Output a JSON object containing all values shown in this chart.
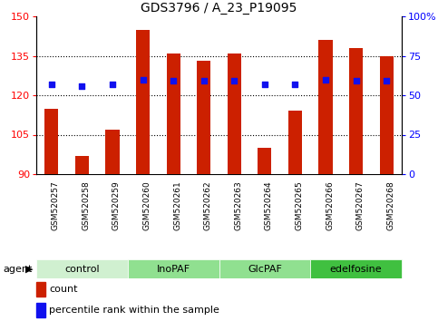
{
  "title": "GDS3796 / A_23_P19095",
  "samples": [
    "GSM520257",
    "GSM520258",
    "GSM520259",
    "GSM520260",
    "GSM520261",
    "GSM520262",
    "GSM520263",
    "GSM520264",
    "GSM520265",
    "GSM520266",
    "GSM520267",
    "GSM520268"
  ],
  "counts": [
    115,
    97,
    107,
    145,
    136,
    133,
    136,
    100,
    114,
    141,
    138,
    135
  ],
  "percentiles": [
    57,
    56,
    57,
    60,
    59,
    59,
    59,
    57,
    57,
    60,
    59,
    59
  ],
  "ylim_left": [
    90,
    150
  ],
  "ylim_right": [
    0,
    100
  ],
  "yticks_left": [
    90,
    105,
    120,
    135,
    150
  ],
  "yticks_right": [
    0,
    25,
    50,
    75,
    100
  ],
  "ytick_labels_right": [
    "0",
    "25",
    "50",
    "75",
    "100%"
  ],
  "groups": [
    {
      "label": "control",
      "start": 0,
      "end": 3,
      "color": "#d0f0d0"
    },
    {
      "label": "InoPAF",
      "start": 3,
      "end": 6,
      "color": "#90e090"
    },
    {
      "label": "GlcPAF",
      "start": 6,
      "end": 9,
      "color": "#90e090"
    },
    {
      "label": "edelfosine",
      "start": 9,
      "end": 12,
      "color": "#40c040"
    }
  ],
  "bar_color": "#cc2000",
  "dot_color": "#1010ee",
  "bar_width": 0.45,
  "xtick_bg": "#b8b8b8",
  "plot_bg": "#ffffff",
  "legend_items": [
    {
      "label": "count",
      "color": "#cc2000"
    },
    {
      "label": "percentile rank within the sample",
      "color": "#1010ee"
    }
  ],
  "agent_label": "agent"
}
